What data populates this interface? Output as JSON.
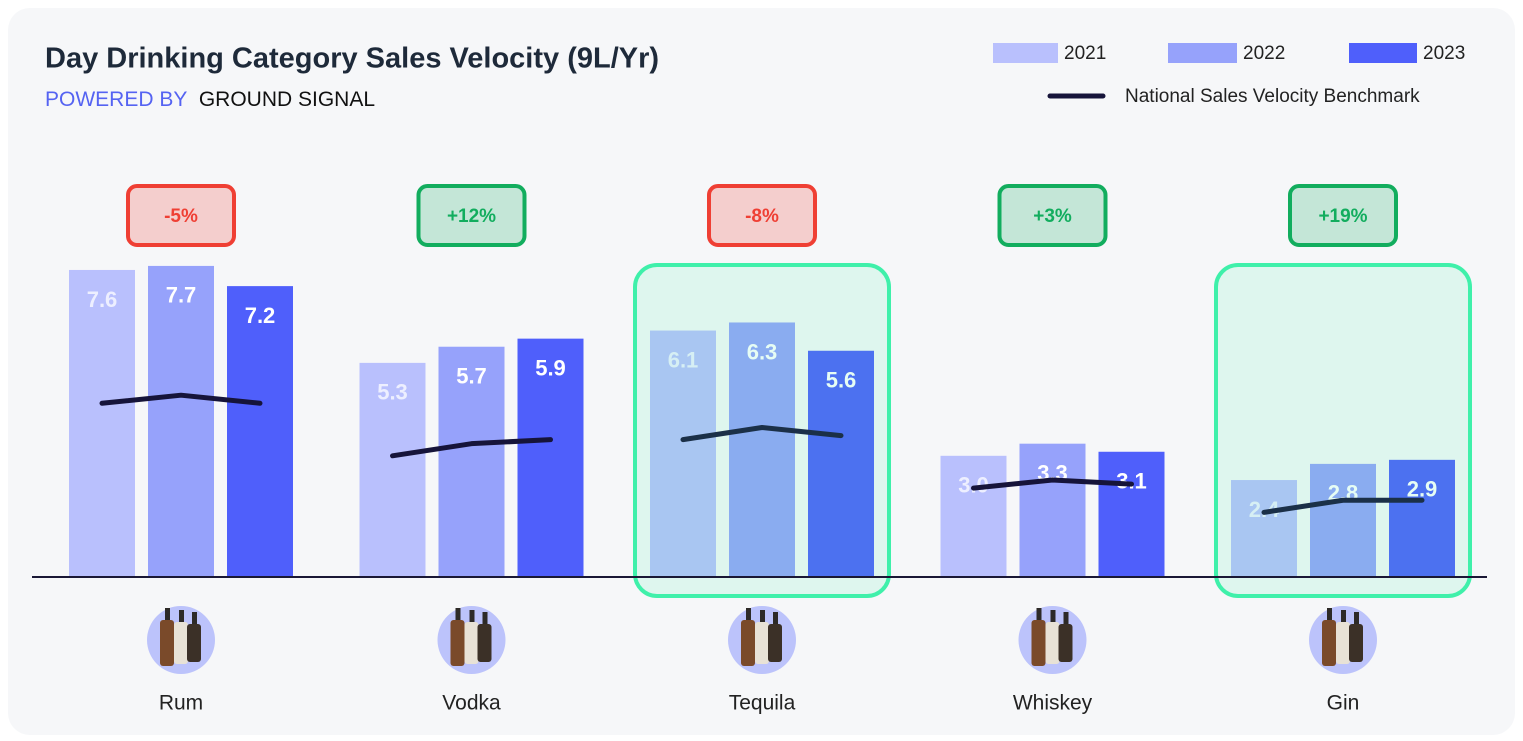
{
  "chart_data": {
    "type": "bar",
    "title": "Day Drinking Category Sales Velocity (9L/Yr)",
    "subtitle": "POWERED BY",
    "brand": "GROUND SIGNAL",
    "categories": [
      "Rum",
      "Vodka",
      "Tequila",
      "Whiskey",
      "Gin"
    ],
    "series": [
      {
        "name": "2021",
        "color": "#b9c0fd",
        "values": [
          7.6,
          5.3,
          6.1,
          3.0,
          2.4
        ],
        "value_labels": [
          "7.6",
          "5.3",
          "6.1",
          "3.0",
          "2.4"
        ]
      },
      {
        "name": "2022",
        "color": "#96a2fb",
        "values": [
          7.7,
          5.7,
          6.3,
          3.3,
          2.8
        ]
      },
      {
        "name": "2023",
        "color": "#4f5ffb",
        "values": [
          7.2,
          5.9,
          5.6,
          3.1,
          2.9
        ]
      }
    ],
    "benchmark": {
      "name": "National Sales Velocity Benchmark",
      "color": "#16143a",
      "values": [
        [
          4.3,
          4.5,
          4.3
        ],
        [
          3.0,
          3.3,
          3.4
        ],
        [
          3.4,
          3.7,
          3.5
        ],
        [
          2.2,
          2.4,
          2.3
        ],
        [
          1.6,
          1.9,
          1.9
        ]
      ]
    },
    "change": {
      "values": [
        -5,
        12,
        -8,
        3,
        19
      ],
      "value_labels": [
        "-5%",
        "+12%",
        "-8%",
        "+3%",
        "+19%"
      ],
      "up_color": "#12ad5e",
      "down_color": "#ef3f34"
    },
    "highlighted": [
      false,
      false,
      true,
      false,
      true
    ],
    "highlight_color": "#3ff0aa",
    "ylim": [
      0,
      10
    ]
  }
}
